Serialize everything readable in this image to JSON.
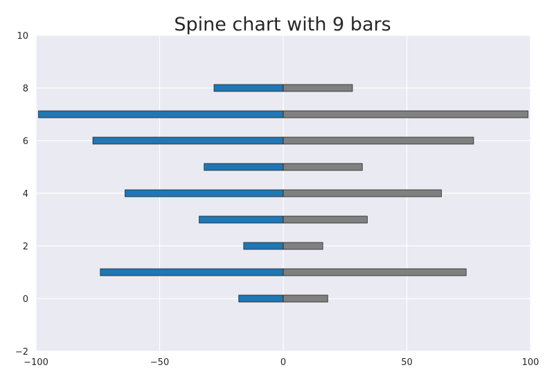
{
  "chart_data": {
    "type": "bar",
    "orientation": "horizontal",
    "subtype": "spine",
    "title": "Spine chart with 9 bars",
    "xlabel": "",
    "ylabel": "",
    "xlim": [
      -100,
      100
    ],
    "ylim": [
      -2,
      10
    ],
    "grid": true,
    "x_ticks": [
      -100,
      -50,
      0,
      50,
      100
    ],
    "x_tick_labels": [
      "−100",
      "−50",
      "0",
      "50",
      "100"
    ],
    "y_ticks": [
      -2,
      0,
      2,
      4,
      6,
      8,
      10
    ],
    "y_tick_labels": [
      "−2",
      "0",
      "2",
      "4",
      "6",
      "8",
      "10"
    ],
    "y": [
      0,
      1,
      2,
      3,
      4,
      5,
      6,
      7,
      8
    ],
    "series": [
      {
        "color": "#1f77b4",
        "values": [
          -18,
          -74,
          -16,
          -34,
          -64,
          -32,
          -77,
          -99,
          -28
        ]
      },
      {
        "color": "#808080",
        "values": [
          18,
          74,
          16,
          34,
          64,
          32,
          77,
          99,
          28
        ]
      }
    ],
    "colors": {
      "plot_background": "#eaeaf2",
      "grid": "#ffffff"
    }
  }
}
